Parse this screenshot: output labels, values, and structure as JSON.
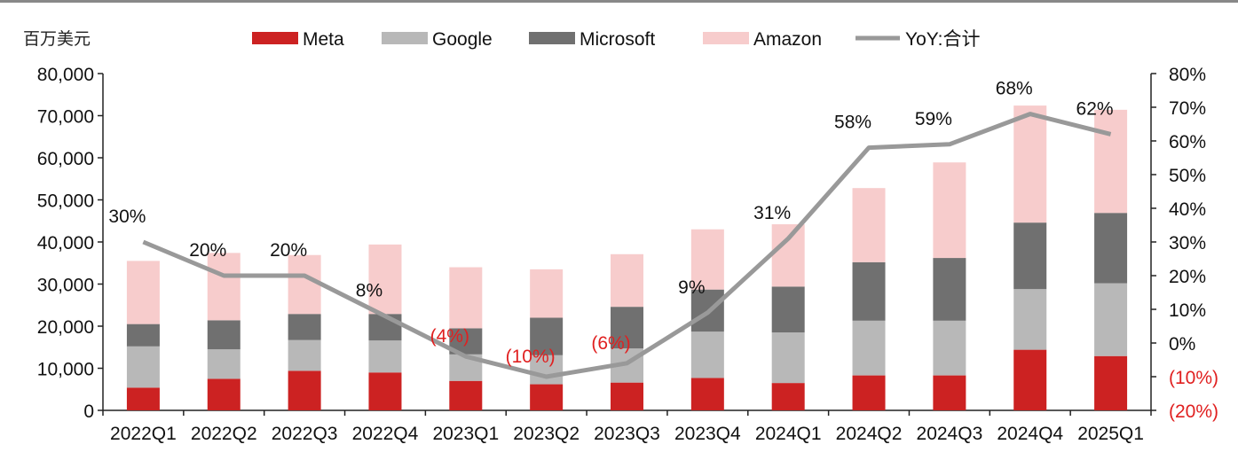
{
  "chart_data": {
    "type": "bar",
    "stacked": true,
    "unit_label": "百万美元",
    "categories": [
      "2022Q1",
      "2022Q2",
      "2022Q3",
      "2022Q4",
      "2023Q1",
      "2023Q2",
      "2023Q3",
      "2023Q4",
      "2024Q1",
      "2024Q2",
      "2024Q3",
      "2024Q4",
      "2025Q1"
    ],
    "series": [
      {
        "name": "Meta",
        "color": "#cc2222",
        "values": [
          5400,
          7500,
          9400,
          9000,
          7000,
          6200,
          6600,
          7700,
          6500,
          8300,
          8300,
          14400,
          12900
        ]
      },
      {
        "name": "Google",
        "color": "#b8b8b8",
        "values": [
          9800,
          7000,
          7300,
          7600,
          6300,
          6900,
          8100,
          11000,
          12000,
          13000,
          13000,
          14400,
          17300
        ]
      },
      {
        "name": "Microsoft",
        "color": "#707070",
        "values": [
          5300,
          6900,
          6200,
          6300,
          6200,
          8900,
          9900,
          10000,
          10900,
          13900,
          14900,
          15800,
          16700
        ]
      },
      {
        "name": "Amazon",
        "color": "#f7cccc",
        "values": [
          15000,
          16000,
          14000,
          16500,
          14500,
          11500,
          12500,
          14300,
          14800,
          17600,
          22700,
          27800,
          24500
        ]
      }
    ],
    "line_series": {
      "name": "YoY:合计",
      "color": "#999999",
      "values": [
        30,
        20,
        20,
        8,
        -4,
        -10,
        -6,
        9,
        31,
        58,
        59,
        68,
        62
      ],
      "labels": [
        "30%",
        "20%",
        "20%",
        "8%",
        "(4%)",
        "(10%)",
        "(6%)",
        "9%",
        "31%",
        "58%",
        "59%",
        "68%",
        "62%"
      ]
    },
    "ylim_left": [
      0,
      80000
    ],
    "yticks_left": [
      "0",
      "10,000",
      "20,000",
      "30,000",
      "40,000",
      "50,000",
      "60,000",
      "70,000",
      "80,000"
    ],
    "ylim_right": [
      -20,
      80
    ],
    "yticks_right": [
      "(20%)",
      "(10%)",
      "0%",
      "10%",
      "20%",
      "30%",
      "40%",
      "50%",
      "60%",
      "70%",
      "80%"
    ],
    "negative_color": "#e02020",
    "legend_position": "top"
  }
}
